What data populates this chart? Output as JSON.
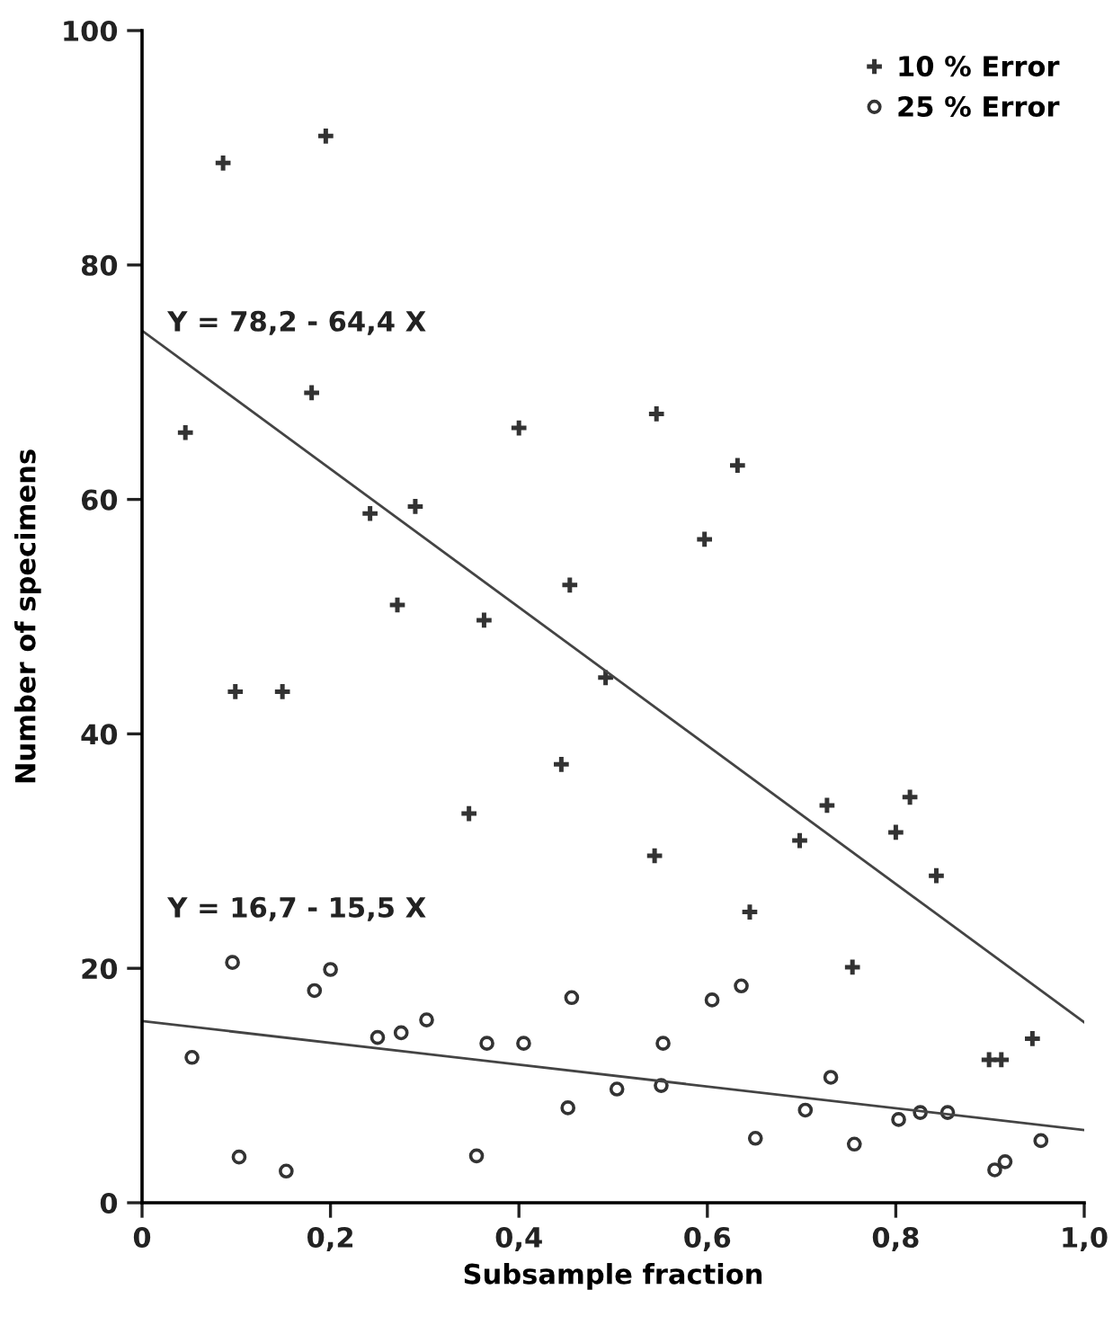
{
  "chart_data": {
    "type": "scatter",
    "xlabel": "Subsample fraction",
    "ylabel": "Number of specimens",
    "xlim": [
      0,
      1.0
    ],
    "ylim": [
      0,
      100
    ],
    "xticks": [
      0,
      {
        "value": 0.2,
        "label": "0,2"
      },
      {
        "value": 0.4,
        "label": "0,4"
      },
      {
        "value": 0.6,
        "label": "0,6"
      },
      {
        "value": 0.8,
        "label": "0,8"
      },
      {
        "value": 1.0,
        "label": "1,0"
      }
    ],
    "yticks": [
      0,
      20,
      40,
      60,
      80,
      100
    ],
    "legend": "top right",
    "annotations": [
      "Y = 78,2 - 64,4 X",
      "Y = 16,7 - 15,5 X"
    ],
    "series": [
      {
        "name": "10 % Error",
        "color": "#333333",
        "marker": "cross",
        "x": [
          0.086,
          0.195,
          0.18,
          0.046,
          0.4,
          0.242,
          0.29,
          0.454,
          0.271,
          0.546,
          0.632,
          0.597,
          0.363,
          0.492,
          0.099,
          0.149,
          0.445,
          0.347,
          0.544,
          0.645,
          0.698,
          0.727,
          0.8,
          0.815,
          0.843,
          0.754,
          0.899,
          0.912,
          0.945
        ],
        "values": [
          88.7,
          91.0,
          69.1,
          65.7,
          66.1,
          58.8,
          59.4,
          52.7,
          51.0,
          67.3,
          62.9,
          56.6,
          49.7,
          44.8,
          43.6,
          43.6,
          37.4,
          33.2,
          29.6,
          24.8,
          30.9,
          33.9,
          31.6,
          34.6,
          27.9,
          20.1,
          12.2,
          12.2,
          14.0
        ]
      },
      {
        "name": "25 % Error",
        "color": "#333333",
        "marker": "circle",
        "x": [
          0.096,
          0.2,
          0.183,
          0.053,
          0.25,
          0.275,
          0.302,
          0.366,
          0.405,
          0.456,
          0.452,
          0.504,
          0.103,
          0.153,
          0.355,
          0.551,
          0.553,
          0.605,
          0.636,
          0.651,
          0.704,
          0.731,
          0.756,
          0.803,
          0.826,
          0.855,
          0.905,
          0.916,
          0.954
        ],
        "values": [
          20.5,
          19.9,
          18.1,
          12.4,
          14.1,
          14.5,
          15.6,
          13.6,
          13.6,
          17.5,
          8.1,
          9.7,
          3.9,
          2.7,
          4.0,
          10.0,
          13.6,
          17.3,
          18.5,
          5.5,
          7.9,
          10.7,
          5.0,
          7.1,
          7.7,
          7.7,
          2.8,
          3.5,
          5.3
        ]
      },
      {
        "type": "line",
        "color": "#444444",
        "marker": "none",
        "x": [
          0,
          1.0
        ],
        "values": [
          74.4,
          15.4
        ]
      },
      {
        "type": "line",
        "color": "#444444",
        "marker": "none",
        "x": [
          0,
          1.0
        ],
        "values": [
          15.5,
          6.2
        ]
      }
    ]
  }
}
